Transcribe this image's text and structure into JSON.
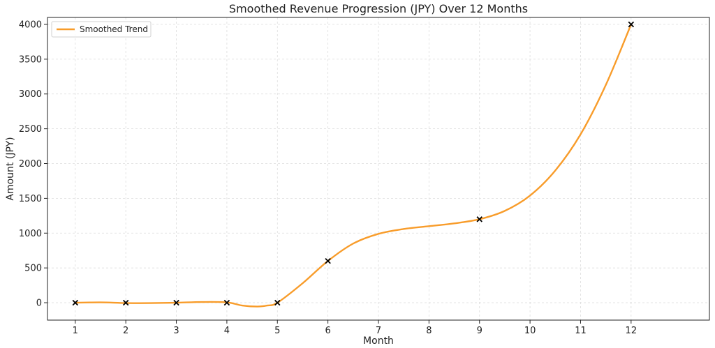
{
  "chart_data": {
    "type": "line",
    "title": "Smoothed Revenue Progression (JPY) Over 12 Months",
    "xlabel": "Month",
    "ylabel": "Amount (JPY)",
    "x_ticks": [
      1,
      2,
      3,
      4,
      5,
      6,
      7,
      8,
      9,
      10,
      11,
      12
    ],
    "y_ticks": [
      0,
      500,
      1000,
      1500,
      2000,
      2500,
      3000,
      3500,
      4000
    ],
    "xlim": [
      0.45,
      13.55
    ],
    "ylim": [
      -250,
      4100
    ],
    "grid": true,
    "legend_position": "top-left",
    "series": [
      {
        "name": "Smoothed Trend",
        "color": "#f89c2a",
        "x": [
          1,
          1.5,
          2,
          2.5,
          3,
          3.5,
          4,
          4.3,
          4.6,
          4.8,
          5,
          5.5,
          6,
          6.5,
          7,
          7.5,
          8,
          8.5,
          9,
          9.5,
          10,
          10.5,
          11,
          11.5,
          12
        ],
        "y": [
          0,
          5,
          -5,
          -5,
          0,
          10,
          5,
          -40,
          -55,
          -40,
          0,
          280,
          600,
          850,
          990,
          1060,
          1100,
          1140,
          1200,
          1320,
          1540,
          1900,
          2420,
          3130,
          4000
        ]
      }
    ],
    "markers": {
      "color": "#000000",
      "x": [
        1,
        2,
        3,
        4,
        5,
        6,
        9,
        12
      ],
      "y": [
        0,
        0,
        0,
        0,
        0,
        600,
        1200,
        4000
      ]
    }
  }
}
